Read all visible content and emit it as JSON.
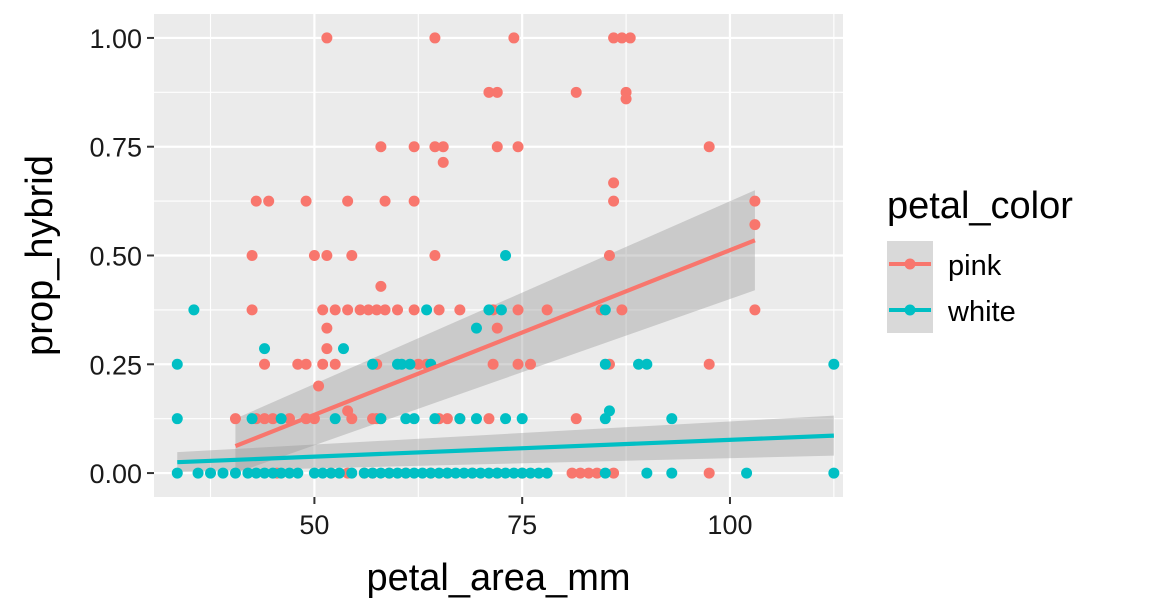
{
  "chart_data": {
    "type": "scatter",
    "title": "",
    "xlabel": "petal_area_mm",
    "ylabel": "prop_hybrid",
    "xlim": [
      30.7,
      113.6
    ],
    "ylim": [
      -0.055,
      1.055
    ],
    "x_ticks": [
      50,
      75,
      100
    ],
    "x_tick_labels": [
      "50",
      "75",
      "100"
    ],
    "y_ticks": [
      0,
      0.25,
      0.5,
      0.75,
      1.0
    ],
    "y_tick_labels": [
      "0.00",
      "0.25",
      "0.50",
      "0.75",
      "1.00"
    ],
    "grid": true,
    "legend": {
      "title": "petal_color",
      "position": "right"
    },
    "series": [
      {
        "name": "pink",
        "color": "#F8766D",
        "points": [
          [
            51.5,
            1.0
          ],
          [
            64.5,
            1.0
          ],
          [
            74,
            1.0
          ],
          [
            86,
            1.0
          ],
          [
            87,
            1.0
          ],
          [
            88,
            1.0
          ],
          [
            71,
            0.875
          ],
          [
            72,
            0.875
          ],
          [
            81.5,
            0.875
          ],
          [
            87.5,
            0.875
          ],
          [
            87.5,
            0.86
          ],
          [
            58,
            0.75
          ],
          [
            62,
            0.75
          ],
          [
            64.5,
            0.75
          ],
          [
            65.5,
            0.75
          ],
          [
            72,
            0.75
          ],
          [
            74.5,
            0.75
          ],
          [
            97.5,
            0.75
          ],
          [
            65.5,
            0.714
          ],
          [
            86,
            0.667
          ],
          [
            43,
            0.625
          ],
          [
            44.5,
            0.625
          ],
          [
            49,
            0.625
          ],
          [
            54,
            0.625
          ],
          [
            58.5,
            0.625
          ],
          [
            62,
            0.625
          ],
          [
            86,
            0.625
          ],
          [
            103,
            0.625
          ],
          [
            103,
            0.571
          ],
          [
            42.5,
            0.5
          ],
          [
            50,
            0.5
          ],
          [
            51.5,
            0.5
          ],
          [
            54.5,
            0.5
          ],
          [
            64.5,
            0.5
          ],
          [
            85.5,
            0.5
          ],
          [
            58,
            0.429
          ],
          [
            42.5,
            0.375
          ],
          [
            51,
            0.375
          ],
          [
            52.5,
            0.375
          ],
          [
            54,
            0.375
          ],
          [
            55.5,
            0.375
          ],
          [
            56.5,
            0.375
          ],
          [
            57.5,
            0.375
          ],
          [
            58.5,
            0.375
          ],
          [
            60,
            0.375
          ],
          [
            62,
            0.375
          ],
          [
            65,
            0.375
          ],
          [
            67.5,
            0.375
          ],
          [
            71.5,
            0.375
          ],
          [
            74.5,
            0.375
          ],
          [
            78,
            0.375
          ],
          [
            84.5,
            0.375
          ],
          [
            87,
            0.375
          ],
          [
            103,
            0.375
          ],
          [
            51.5,
            0.333
          ],
          [
            72,
            0.333
          ],
          [
            51.5,
            0.286
          ],
          [
            44,
            0.25
          ],
          [
            48,
            0.25
          ],
          [
            49,
            0.25
          ],
          [
            51,
            0.25
          ],
          [
            52.5,
            0.25
          ],
          [
            57.5,
            0.25
          ],
          [
            62.5,
            0.25
          ],
          [
            63.5,
            0.25
          ],
          [
            71.5,
            0.25
          ],
          [
            74.5,
            0.25
          ],
          [
            76,
            0.25
          ],
          [
            85.5,
            0.25
          ],
          [
            97.5,
            0.25
          ],
          [
            50.5,
            0.2
          ],
          [
            54,
            0.143
          ],
          [
            40.5,
            0.125
          ],
          [
            43,
            0.125
          ],
          [
            44,
            0.125
          ],
          [
            45,
            0.125
          ],
          [
            47,
            0.125
          ],
          [
            49,
            0.125
          ],
          [
            50,
            0.125
          ],
          [
            54.5,
            0.125
          ],
          [
            57,
            0.125
          ],
          [
            57.5,
            0.125
          ],
          [
            58,
            0.125
          ],
          [
            65,
            0.125
          ],
          [
            66,
            0.125
          ],
          [
            67.5,
            0.125
          ],
          [
            71,
            0.125
          ],
          [
            81.5,
            0.125
          ],
          [
            45.5,
            0
          ],
          [
            52,
            0
          ],
          [
            54,
            0
          ],
          [
            56,
            0
          ],
          [
            57,
            0
          ],
          [
            59,
            0
          ],
          [
            61,
            0
          ],
          [
            64,
            0
          ],
          [
            66,
            0
          ],
          [
            69,
            0
          ],
          [
            72,
            0
          ],
          [
            75,
            0
          ],
          [
            81,
            0
          ],
          [
            82,
            0
          ],
          [
            83,
            0
          ],
          [
            84,
            0
          ],
          [
            86,
            0
          ],
          [
            97.5,
            0
          ]
        ]
      },
      {
        "name": "white",
        "color": "#00BFC4",
        "points": [
          [
            33.5,
            0.25
          ],
          [
            35.5,
            0.375
          ],
          [
            44,
            0.286
          ],
          [
            53.5,
            0.286
          ],
          [
            63.5,
            0.375
          ],
          [
            71,
            0.375
          ],
          [
            72.5,
            0.375
          ],
          [
            69.5,
            0.333
          ],
          [
            73,
            0.5
          ],
          [
            57,
            0.25
          ],
          [
            60,
            0.25
          ],
          [
            60.5,
            0.25
          ],
          [
            61.5,
            0.25
          ],
          [
            64,
            0.25
          ],
          [
            85,
            0.25
          ],
          [
            89,
            0.25
          ],
          [
            90,
            0.25
          ],
          [
            112.5,
            0.25
          ],
          [
            85,
            0.375
          ],
          [
            33.5,
            0.125
          ],
          [
            42.5,
            0.125
          ],
          [
            46,
            0.125
          ],
          [
            52.5,
            0.125
          ],
          [
            58,
            0.125
          ],
          [
            61,
            0.125
          ],
          [
            62,
            0.125
          ],
          [
            64.5,
            0.125
          ],
          [
            67.5,
            0.125
          ],
          [
            69.5,
            0.125
          ],
          [
            73,
            0.125
          ],
          [
            75,
            0.125
          ],
          [
            85,
            0.125
          ],
          [
            85.5,
            0.143
          ],
          [
            93,
            0.125
          ],
          [
            33.5,
            0
          ],
          [
            36,
            0
          ],
          [
            37.5,
            0
          ],
          [
            39,
            0
          ],
          [
            40.5,
            0
          ],
          [
            42,
            0
          ],
          [
            43,
            0
          ],
          [
            44,
            0
          ],
          [
            45,
            0
          ],
          [
            46,
            0
          ],
          [
            47,
            0
          ],
          [
            48,
            0
          ],
          [
            50,
            0
          ],
          [
            51,
            0
          ],
          [
            52,
            0
          ],
          [
            53,
            0
          ],
          [
            54.5,
            0
          ],
          [
            56,
            0
          ],
          [
            57,
            0
          ],
          [
            58,
            0
          ],
          [
            59,
            0
          ],
          [
            60,
            0
          ],
          [
            61,
            0
          ],
          [
            62,
            0
          ],
          [
            63,
            0
          ],
          [
            64,
            0
          ],
          [
            65,
            0
          ],
          [
            66,
            0
          ],
          [
            67,
            0
          ],
          [
            68,
            0
          ],
          [
            69,
            0
          ],
          [
            70,
            0
          ],
          [
            71,
            0
          ],
          [
            72,
            0
          ],
          [
            73,
            0
          ],
          [
            74,
            0
          ],
          [
            75,
            0
          ],
          [
            76,
            0
          ],
          [
            77,
            0
          ],
          [
            78,
            0
          ],
          [
            85,
            0
          ],
          [
            90,
            0
          ],
          [
            93,
            0
          ],
          [
            102,
            0
          ],
          [
            112.5,
            0
          ]
        ]
      }
    ],
    "trend_lines": [
      {
        "series": "pink",
        "x": [
          40.5,
          103
        ],
        "y": [
          0.062,
          0.535
        ],
        "ci_low": [
          0.0,
          0.42
        ],
        "ci_high": [
          0.125,
          0.65
        ]
      },
      {
        "series": "white",
        "x": [
          33.5,
          112.5
        ],
        "y": [
          0.025,
          0.086
        ],
        "ci_low": [
          0.003,
          0.04
        ],
        "ci_high": [
          0.048,
          0.132
        ]
      }
    ]
  }
}
